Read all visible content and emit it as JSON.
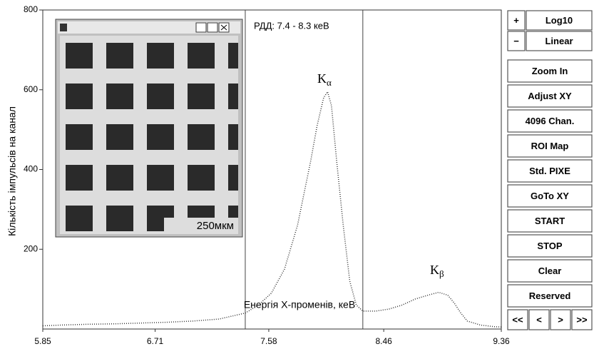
{
  "chart_data": {
    "type": "line",
    "y_label": "Кількість імпульсів на канал",
    "x_label": "Енергія Х-променів, кеВ",
    "roi_label": "РДД: 7.4 -  8.3 кеВ",
    "roi": [
      7.4,
      8.3
    ],
    "annotations": [
      {
        "text": "K",
        "sub": "α"
      },
      {
        "text": "K",
        "sub": "β"
      }
    ],
    "x": [
      5.85,
      6.0,
      6.2,
      6.4,
      6.6,
      6.8,
      7.0,
      7.2,
      7.4,
      7.5,
      7.6,
      7.7,
      7.8,
      7.9,
      7.95,
      8.0,
      8.03,
      8.06,
      8.1,
      8.15,
      8.2,
      8.25,
      8.3,
      8.4,
      8.5,
      8.6,
      8.7,
      8.8,
      8.88,
      8.95,
      9.0,
      9.05,
      9.1,
      9.2,
      9.3,
      9.36
    ],
    "series": [
      {
        "color": "#333333",
        "values": [
          8,
          10,
          12,
          13,
          15,
          17,
          20,
          25,
          40,
          60,
          90,
          150,
          260,
          420,
          510,
          580,
          595,
          560,
          420,
          260,
          120,
          60,
          45,
          45,
          50,
          60,
          75,
          85,
          92,
          85,
          65,
          40,
          20,
          10,
          6,
          5
        ]
      }
    ],
    "xlim": [
      5.85,
      9.36
    ],
    "xticks": [
      5.85,
      6.71,
      7.58,
      8.46,
      9.36
    ],
    "ylim": [
      0,
      800
    ],
    "yticks": [
      200,
      400,
      600,
      800
    ]
  },
  "inset": {
    "label": "250мкм"
  },
  "panel": {
    "rows": [
      [
        "+",
        "Log10"
      ],
      [
        "−",
        "Linear"
      ],
      "Zoom In",
      "Adjust XY",
      "4096 Chan.",
      "ROI Map",
      "Std. PIXE",
      "GoTo XY",
      "START",
      "STOP",
      "Clear",
      "Reserved"
    ],
    "nav": [
      "<<",
      "<",
      ">",
      ">>"
    ]
  }
}
